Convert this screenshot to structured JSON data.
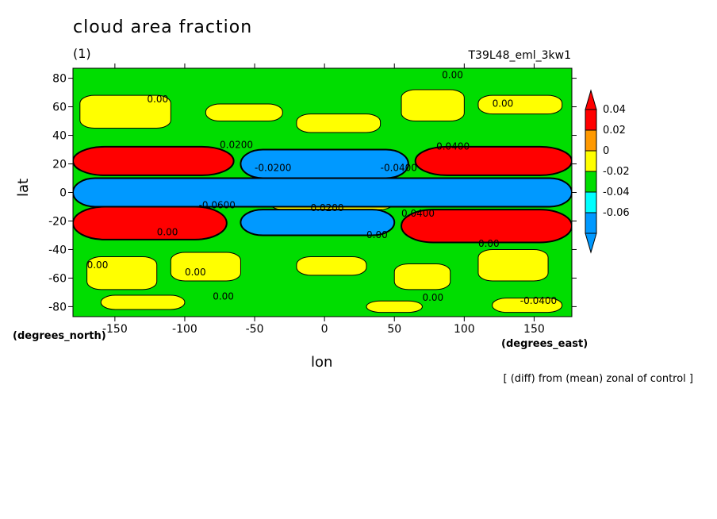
{
  "chart_data": {
    "type": "heatmap",
    "title": "cloud area fraction",
    "subtitle": "(1)",
    "run_id": "T39L48_eml_3kw1",
    "xlabel": "lon",
    "ylabel": "lat",
    "x_unit": "(degrees_east)",
    "y_unit": "(degrees_north)",
    "xlim": [
      -180,
      177
    ],
    "ylim": [
      -87,
      87
    ],
    "x_ticks": [
      "-150",
      "-100",
      "-50",
      "0",
      "50",
      "100",
      "150"
    ],
    "x_tick_values": [
      -150,
      -100,
      -50,
      0,
      50,
      100,
      150
    ],
    "y_ticks": [
      "80",
      "60",
      "40",
      "20",
      "0",
      "-20",
      "-40",
      "-60",
      "-80"
    ],
    "y_tick_values": [
      80,
      60,
      40,
      20,
      0,
      -20,
      -40,
      -60,
      -80
    ],
    "colorbar": {
      "labels": [
        "0.04",
        "0.02",
        "0",
        "-0.02",
        "-0.04",
        "-0.06"
      ],
      "colors": [
        "#ff0000",
        "#ff9900",
        "#ffff00",
        "#00dd00",
        "#00ffff",
        "#0099ff"
      ]
    },
    "contour_labels": [
      "0.00",
      "0.00",
      "0.00",
      "0.0200",
      "0.0400",
      "-0.0200",
      "-0.0400",
      "-0.0600",
      "0.0200",
      "0.0400",
      "0.00",
      "0.00",
      "0.00",
      "0.00",
      "-0.0400",
      "0.00",
      "0.00",
      "0.00"
    ],
    "note": "[ (diff) from (mean) zonal of control ]",
    "bands": [
      {
        "lat_range": [
          12,
          32
        ],
        "lon_range": [
          -180,
          -65
        ],
        "level": 0.04
      },
      {
        "lat_range": [
          12,
          32
        ],
        "lon_range": [
          65,
          177
        ],
        "level": 0.04
      },
      {
        "lat_range": [
          -33,
          -10
        ],
        "lon_range": [
          -180,
          -70
        ],
        "level": 0.04
      },
      {
        "lat_range": [
          -35,
          -12
        ],
        "lon_range": [
          55,
          177
        ],
        "level": 0.04
      },
      {
        "lat_range": [
          -10,
          10
        ],
        "lon_range": [
          -180,
          177
        ],
        "level": -0.06
      },
      {
        "lat_range": [
          10,
          30
        ],
        "lon_range": [
          -60,
          60
        ],
        "level": -0.06
      },
      {
        "lat_range": [
          -30,
          -12
        ],
        "lon_range": [
          -60,
          50
        ],
        "level": -0.06
      }
    ]
  }
}
